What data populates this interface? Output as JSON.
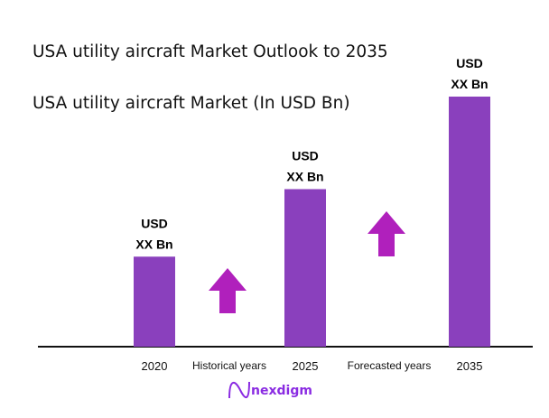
{
  "chart_data": {
    "type": "bar",
    "title": "USA utility aircraft Market Outlook to 2035",
    "subtitle": "USA utility aircraft Market (In USD Bn)",
    "categories": [
      "2020",
      "2025",
      "2035"
    ],
    "data_labels": [
      [
        "USD",
        "XX Bn"
      ],
      [
        "USD",
        "XX Bn"
      ],
      [
        "USD",
        "XX Bn"
      ]
    ],
    "relative_height_pct": [
      36,
      63,
      100
    ],
    "period_labels": [
      "Historical years",
      "Forecasted years"
    ],
    "annotations": [
      "up-arrow",
      "up-arrow"
    ],
    "grid": false,
    "legend": "none"
  },
  "colors": {
    "bar": "#8a40bd",
    "arrow": "#b020bc",
    "axis": "#111111",
    "logo": "#8a2be2"
  },
  "logo": {
    "text": "nexdigm",
    "icon": "nexdigm-wave-icon"
  }
}
